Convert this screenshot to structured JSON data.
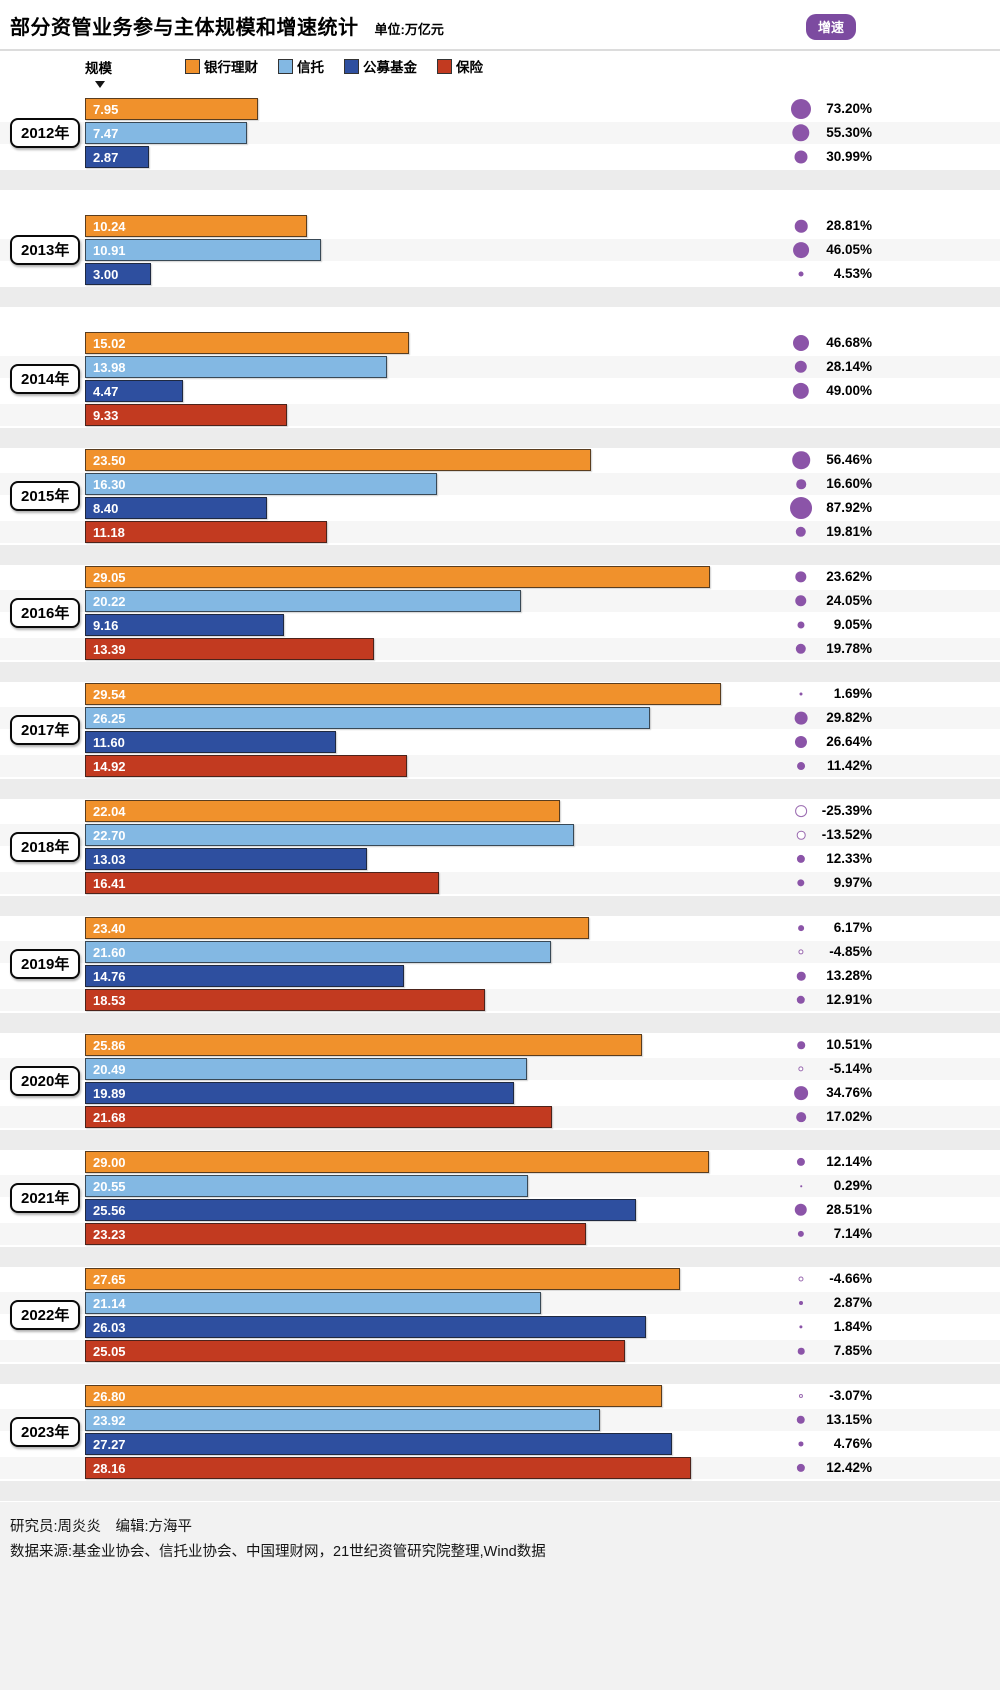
{
  "header": {
    "title": "部分资管业务参与主体规模和增速统计",
    "unit_label": "单位:万亿元",
    "growth_badge_label": "增速",
    "scale_label": "规模"
  },
  "legend": {
    "items": [
      {
        "label": "银行理财",
        "color": "#f0912c"
      },
      {
        "label": "信托",
        "color": "#83b8e3"
      },
      {
        "label": "公募基金",
        "color": "#2e4f9f"
      },
      {
        "label": "保险",
        "color": "#c23a20"
      }
    ]
  },
  "chart_data": {
    "type": "bar",
    "orientation": "horizontal",
    "title": "部分资管业务参与主体规模和增速统计",
    "value_unit": "万亿元",
    "xlim": [
      0,
      29.54
    ],
    "grid": false,
    "series_names": [
      "银行理财",
      "信托",
      "公募基金",
      "保险"
    ],
    "series_colors": {
      "银行理财": "#f0912c",
      "信托": "#83b8e3",
      "公募基金": "#2e4f9f",
      "保险": "#c23a20"
    },
    "growth_positive_color": "#8b54a8",
    "growth_negative_style": "hollow-circle",
    "years": [
      {
        "year": "2012年",
        "values": [
          {
            "series": "银行理财",
            "scale": 7.95,
            "scale_label": "7.95",
            "growth_pct": 73.2,
            "growth_label": "73.20%"
          },
          {
            "series": "信托",
            "scale": 7.47,
            "scale_label": "7.47",
            "growth_pct": 55.3,
            "growth_label": "55.30%"
          },
          {
            "series": "公募基金",
            "scale": 2.87,
            "scale_label": "2.87",
            "growth_pct": 30.99,
            "growth_label": "30.99%"
          }
        ]
      },
      {
        "year": "2013年",
        "values": [
          {
            "series": "银行理财",
            "scale": 10.24,
            "scale_label": "10.24",
            "growth_pct": 28.81,
            "growth_label": "28.81%"
          },
          {
            "series": "信托",
            "scale": 10.91,
            "scale_label": "10.91",
            "growth_pct": 46.05,
            "growth_label": "46.05%"
          },
          {
            "series": "公募基金",
            "scale": 3.0,
            "scale_label": "3.00",
            "growth_pct": 4.53,
            "growth_label": "4.53%"
          }
        ]
      },
      {
        "year": "2014年",
        "values": [
          {
            "series": "银行理财",
            "scale": 15.02,
            "scale_label": "15.02",
            "growth_pct": 46.68,
            "growth_label": "46.68%"
          },
          {
            "series": "信托",
            "scale": 13.98,
            "scale_label": "13.98",
            "growth_pct": 28.14,
            "growth_label": "28.14%"
          },
          {
            "series": "公募基金",
            "scale": 4.47,
            "scale_label": "4.47",
            "growth_pct": 49.0,
            "growth_label": "49.00%"
          },
          {
            "series": "保险",
            "scale": 9.33,
            "scale_label": "9.33",
            "growth_pct": null,
            "growth_label": null
          }
        ]
      },
      {
        "year": "2015年",
        "values": [
          {
            "series": "银行理财",
            "scale": 23.5,
            "scale_label": "23.50",
            "growth_pct": 56.46,
            "growth_label": "56.46%"
          },
          {
            "series": "信托",
            "scale": 16.3,
            "scale_label": "16.30",
            "growth_pct": 16.6,
            "growth_label": "16.60%"
          },
          {
            "series": "公募基金",
            "scale": 8.4,
            "scale_label": "8.40",
            "growth_pct": 87.92,
            "growth_label": "87.92%"
          },
          {
            "series": "保险",
            "scale": 11.18,
            "scale_label": "11.18",
            "growth_pct": 19.81,
            "growth_label": "19.81%"
          }
        ]
      },
      {
        "year": "2016年",
        "values": [
          {
            "series": "银行理财",
            "scale": 29.05,
            "scale_label": "29.05",
            "growth_pct": 23.62,
            "growth_label": "23.62%"
          },
          {
            "series": "信托",
            "scale": 20.22,
            "scale_label": "20.22",
            "growth_pct": 24.05,
            "growth_label": "24.05%"
          },
          {
            "series": "公募基金",
            "scale": 9.16,
            "scale_label": "9.16",
            "growth_pct": 9.05,
            "growth_label": "9.05%"
          },
          {
            "series": "保险",
            "scale": 13.39,
            "scale_label": "13.39",
            "growth_pct": 19.78,
            "growth_label": "19.78%"
          }
        ]
      },
      {
        "year": "2017年",
        "values": [
          {
            "series": "银行理财",
            "scale": 29.54,
            "scale_label": "29.54",
            "growth_pct": 1.69,
            "growth_label": "1.69%"
          },
          {
            "series": "信托",
            "scale": 26.25,
            "scale_label": "26.25",
            "growth_pct": 29.82,
            "growth_label": "29.82%"
          },
          {
            "series": "公募基金",
            "scale": 11.6,
            "scale_label": "11.60",
            "growth_pct": 26.64,
            "growth_label": "26.64%"
          },
          {
            "series": "保险",
            "scale": 14.92,
            "scale_label": "14.92",
            "growth_pct": 11.42,
            "growth_label": "11.42%"
          }
        ]
      },
      {
        "year": "2018年",
        "values": [
          {
            "series": "银行理财",
            "scale": 22.04,
            "scale_label": "22.04",
            "growth_pct": -25.39,
            "growth_label": "-25.39%"
          },
          {
            "series": "信托",
            "scale": 22.7,
            "scale_label": "22.70",
            "growth_pct": -13.52,
            "growth_label": "-13.52%"
          },
          {
            "series": "公募基金",
            "scale": 13.03,
            "scale_label": "13.03",
            "growth_pct": 12.33,
            "growth_label": "12.33%"
          },
          {
            "series": "保险",
            "scale": 16.41,
            "scale_label": "16.41",
            "growth_pct": 9.97,
            "growth_label": "9.97%"
          }
        ]
      },
      {
        "year": "2019年",
        "values": [
          {
            "series": "银行理财",
            "scale": 23.4,
            "scale_label": "23.40",
            "growth_pct": 6.17,
            "growth_label": "6.17%"
          },
          {
            "series": "信托",
            "scale": 21.6,
            "scale_label": "21.60",
            "growth_pct": -4.85,
            "growth_label": "-4.85%"
          },
          {
            "series": "公募基金",
            "scale": 14.76,
            "scale_label": "14.76",
            "growth_pct": 13.28,
            "growth_label": "13.28%"
          },
          {
            "series": "保险",
            "scale": 18.53,
            "scale_label": "18.53",
            "growth_pct": 12.91,
            "growth_label": "12.91%"
          }
        ]
      },
      {
        "year": "2020年",
        "values": [
          {
            "series": "银行理财",
            "scale": 25.86,
            "scale_label": "25.86",
            "growth_pct": 10.51,
            "growth_label": "10.51%"
          },
          {
            "series": "信托",
            "scale": 20.49,
            "scale_label": "20.49",
            "growth_pct": -5.14,
            "growth_label": "-5.14%"
          },
          {
            "series": "公募基金",
            "scale": 19.89,
            "scale_label": "19.89",
            "growth_pct": 34.76,
            "growth_label": "34.76%"
          },
          {
            "series": "保险",
            "scale": 21.68,
            "scale_label": "21.68",
            "growth_pct": 17.02,
            "growth_label": "17.02%"
          }
        ]
      },
      {
        "year": "2021年",
        "values": [
          {
            "series": "银行理财",
            "scale": 29.0,
            "scale_label": "29.00",
            "growth_pct": 12.14,
            "growth_label": "12.14%"
          },
          {
            "series": "信托",
            "scale": 20.55,
            "scale_label": "20.55",
            "growth_pct": 0.29,
            "growth_label": "0.29%"
          },
          {
            "series": "公募基金",
            "scale": 25.56,
            "scale_label": "25.56",
            "growth_pct": 28.51,
            "growth_label": "28.51%"
          },
          {
            "series": "保险",
            "scale": 23.23,
            "scale_label": "23.23",
            "growth_pct": 7.14,
            "growth_label": "7.14%"
          }
        ]
      },
      {
        "year": "2022年",
        "values": [
          {
            "series": "银行理财",
            "scale": 27.65,
            "scale_label": "27.65",
            "growth_pct": -4.66,
            "growth_label": "-4.66%"
          },
          {
            "series": "信托",
            "scale": 21.14,
            "scale_label": "21.14",
            "growth_pct": 2.87,
            "growth_label": "2.87%"
          },
          {
            "series": "公募基金",
            "scale": 26.03,
            "scale_label": "26.03",
            "growth_pct": 1.84,
            "growth_label": "1.84%"
          },
          {
            "series": "保险",
            "scale": 25.05,
            "scale_label": "25.05",
            "growth_pct": 7.85,
            "growth_label": "7.85%"
          }
        ]
      },
      {
        "year": "2023年",
        "values": [
          {
            "series": "银行理财",
            "scale": 26.8,
            "scale_label": "26.80",
            "growth_pct": -3.07,
            "growth_label": "-3.07%"
          },
          {
            "series": "信托",
            "scale": 23.92,
            "scale_label": "23.92",
            "growth_pct": 13.15,
            "growth_label": "13.15%"
          },
          {
            "series": "公募基金",
            "scale": 27.27,
            "scale_label": "27.27",
            "growth_pct": 4.76,
            "growth_label": "4.76%"
          },
          {
            "series": "保险",
            "scale": 28.16,
            "scale_label": "28.16",
            "growth_pct": 12.42,
            "growth_label": "12.42%"
          }
        ]
      }
    ]
  },
  "footer": {
    "credits": "研究员:周炎炎　编辑:方海平",
    "source": "数据来源:基金业协会、信托业协会、中国理财网，21世纪资管研究院整理,Wind数据"
  }
}
